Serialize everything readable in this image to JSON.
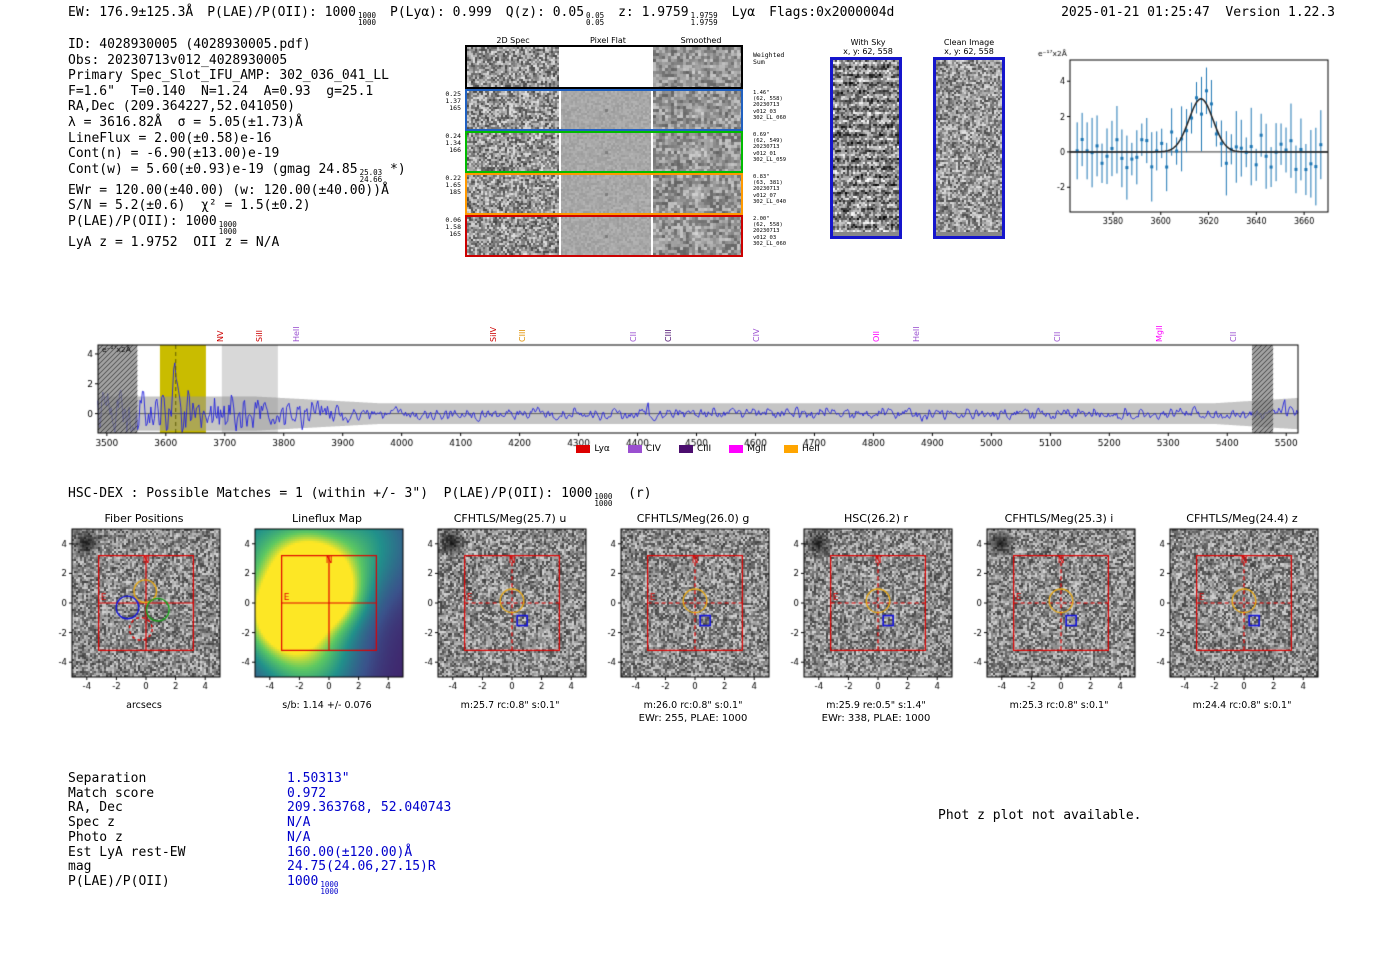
{
  "header": {
    "ew": "EW: 176.9±125.3Å",
    "plae": {
      "label": "P(LAE)/P(OII): 1000",
      "hi": "1000",
      "lo": "1000"
    },
    "plya": "P(Lyα): 0.999",
    "qz": {
      "label": "Q(z): 0.05",
      "hi": "0.05",
      "lo": "0.05"
    },
    "z": {
      "label": "z: 1.9759",
      "hi": "1.9759",
      "lo": "1.9759"
    },
    "species": "Lyα",
    "flags": "Flags:0x2000004d",
    "datetime": "2025-01-21 01:25:47  Version 1.22.3"
  },
  "info": {
    "lines": [
      "ID: 4028930005 (4028930005.pdf)",
      "Obs: 20230713v012_4028930005",
      "Primary Spec_Slot_IFU_AMP: 302_036_041_LL",
      "F=1.6\"  T=0.140  N=1.24  A=0.93  g=25.1",
      "RA,Dec (209.364227,52.041050)",
      "λ = 3616.82Å  σ = 5.05(±1.73)Å",
      "LineFlux = 2.00(±0.58)e-16",
      "Cont(n) = -6.90(±13.00)e-19"
    ],
    "contw": {
      "pre": "Cont(w) = 5.60(±0.93)e-19 (gmag 24.85",
      "hi": "25.03",
      "lo": "24.66",
      "post": " *)"
    },
    "lines2": [
      "EWr = 120.00(±40.00) (w: 120.00(±40.00))Å",
      "S/N = 5.2(±0.6)  χ² = 1.5(±0.2)"
    ],
    "plae": {
      "pre": "P(LAE)/P(OII): 1000",
      "hi": "1000",
      "lo": "1000"
    },
    "last": "LyA z = 1.9752  OII z = N/A"
  },
  "spec2d": {
    "col_headers": [
      "2D Spec",
      "Pixel Flat",
      "Smoothed"
    ],
    "weighted": [
      "Weighted",
      "Sum"
    ],
    "rows": [
      {
        "color": "#2060c0",
        "left": [
          "0.25",
          "1.37",
          "165"
        ],
        "right": [
          "1.46\"",
          "(62, 558)",
          "20230713",
          "v012_03",
          "302_LL_060"
        ]
      },
      {
        "color": "#00bb00",
        "left": [
          "0.24",
          "1.34",
          "166"
        ],
        "right": [
          "0.69\"",
          "(62, 549)",
          "20230713",
          "v012_01",
          "302_LL_059"
        ]
      },
      {
        "color": "#ff9900",
        "left": [
          "0.22",
          "1.65",
          "185"
        ],
        "right": [
          "0.83\"",
          "(63, 381)",
          "20230713",
          "v012_07",
          "302_LL_040"
        ]
      },
      {
        "color": "#cc0000",
        "left": [
          "0.06",
          "1.58",
          "165"
        ],
        "right": [
          "2.00\"",
          "(62, 558)",
          "20230713",
          "v012_03",
          "302_LL_060"
        ]
      }
    ]
  },
  "cutimgs": {
    "with_sky": {
      "title": "With Sky",
      "subtitle": "x, y: 62, 558"
    },
    "clean": {
      "title": "Clean Image",
      "subtitle": "x, y: 62, 558"
    }
  },
  "hscdex": {
    "pre": "HSC-DEX : Possible Matches = 1 (within +/- 3\")  P(LAE)/P(OII): 1000",
    "hi": "1000",
    "lo": "1000",
    "post": "  (r)"
  },
  "match": {
    "rows": [
      {
        "label": "Separation",
        "value": "1.50313\""
      },
      {
        "label": "Match score",
        "value": "0.972"
      },
      {
        "label": "RA, Dec",
        "value": "209.363768, 52.040743"
      },
      {
        "label": "Spec z",
        "value": "N/A"
      },
      {
        "label": "Photo z",
        "value": "N/A"
      },
      {
        "label": "Est LyA rest-EW",
        "value": "160.00(±120.00)Å"
      },
      {
        "label": "mag",
        "value": "24.75(24.06,27.15)R"
      },
      {
        "label": "P(LAE)/P(OII)",
        "value": "1000",
        "hi": "1000",
        "lo": "1000"
      }
    ]
  },
  "photz_note": "Phot z plot not available.",
  "chart_data": [
    {
      "id": "line_fit_zoom",
      "type": "scatter",
      "title": "Emission line fit with Gaussian",
      "ylabel": "e⁻¹⁷x2Å",
      "xlim": [
        3562,
        3670
      ],
      "ylim": [
        -3.4,
        5.2
      ],
      "xticks": [
        3580,
        3600,
        3620,
        3640,
        3660
      ],
      "yticks": [
        -2,
        0,
        2,
        4
      ],
      "gaussian_fit": {
        "center": 3616.82,
        "sigma": 5.05,
        "peak": 3.0,
        "continuum": 0.0
      },
      "marker_color": "#1f77b4",
      "n_points": 50,
      "noise_amp": 1.0,
      "err_bar": 1.5,
      "seed": 11
    },
    {
      "id": "full_spectrum",
      "type": "line",
      "title": "Full HETDEX spectrum",
      "ylabel": "e⁻¹⁷x2Å",
      "xlim": [
        3485,
        5520
      ],
      "ylim": [
        -1.3,
        4.6
      ],
      "xticks": [
        3500,
        3600,
        3700,
        3800,
        3900,
        4000,
        4100,
        4200,
        4300,
        4400,
        4500,
        4600,
        4700,
        4800,
        4900,
        5000,
        5100,
        5200,
        5300,
        5400,
        5500
      ],
      "yticks": [
        0,
        2,
        4
      ],
      "line_color": "#2222dd",
      "emission_line": 3616.82,
      "highlight_region": [
        3590,
        3668
      ],
      "highlight_color": "#c9bc00",
      "gray_regions": [
        [
          3695,
          3790
        ]
      ],
      "edge_masks": [
        [
          3485,
          3552
        ],
        [
          5442,
          5478
        ]
      ],
      "seed": 5,
      "legend": [
        {
          "label": "Lyα",
          "color": "#dd0000"
        },
        {
          "label": "CIV",
          "color": "#9a4fd0"
        },
        {
          "label": "CIII",
          "color": "#4b0d6e"
        },
        {
          "label": "MgII",
          "color": "#ff00ff"
        },
        {
          "label": "HeII",
          "color": "#ffa500"
        }
      ],
      "emission_labels": [
        {
          "name": "NV",
          "wl": 3700,
          "color": "#cc0000"
        },
        {
          "name": "SiII",
          "wl": 3766,
          "color": "#cc0000"
        },
        {
          "name": "HeII",
          "wl": 3830,
          "color": "#9a4fd0"
        },
        {
          "name": "SiIV",
          "wl": 4163,
          "color": "#cc0000"
        },
        {
          "name": "CIII",
          "wl": 4213,
          "color": "#e09000"
        },
        {
          "name": "CII",
          "wl": 4400,
          "color": "#9a4fd0"
        },
        {
          "name": "CIII",
          "wl": 4460,
          "color": "#4b0d6e"
        },
        {
          "name": "CIV",
          "wl": 4610,
          "color": "#9a4fd0"
        },
        {
          "name": "OII",
          "wl": 4813,
          "color": "#ff00ff"
        },
        {
          "name": "HeII",
          "wl": 4880,
          "color": "#9a4fd0"
        },
        {
          "name": "CII",
          "wl": 5120,
          "color": "#9a4fd0"
        },
        {
          "name": "MgII",
          "wl": 5292,
          "color": "#ff00ff"
        },
        {
          "name": "CII",
          "wl": 5419,
          "color": "#9a4fd0"
        }
      ]
    },
    {
      "id": "cutout_row",
      "type": "heatmap",
      "tick_values": [
        -4,
        -2,
        0,
        2,
        4
      ],
      "axis_range": [
        -5,
        5
      ],
      "panels": [
        {
          "title": "Fiber Positions",
          "xlabel": "arcsecs",
          "style": "fiber",
          "blob": true,
          "seed": 21
        },
        {
          "title": "Lineflux Map",
          "xlabel": "s/b: 1.14 +/- 0.076",
          "style": "lineflux",
          "blob": false,
          "seed": 22
        },
        {
          "title": "CFHTLS/Meg(25.7) u",
          "xlabel": "m:25.7 rc:0.8\" s:0.1\"",
          "style": "photo",
          "blob": true,
          "seed": 23
        },
        {
          "title": "CFHTLS/Meg(26.0) g",
          "xlabel": "m:26.0 rc:0.8\" s:0.1\"",
          "xlabel2": "EWr: 255, PLAE: 1000",
          "style": "photo",
          "blob": false,
          "seed": 24
        },
        {
          "title": "HSC(26.2) r",
          "xlabel": "m:25.9 re:0.5\" s:1.4\"",
          "xlabel2": "EWr: 338, PLAE: 1000",
          "style": "photo",
          "blob": true,
          "seed": 25
        },
        {
          "title": "CFHTLS/Meg(25.3) i",
          "xlabel": "m:25.3 rc:0.8\" s:0.1\"",
          "style": "photo",
          "blob": true,
          "seed": 26
        },
        {
          "title": "CFHTLS/Meg(24.4) z",
          "xlabel": "m:24.4 rc:0.8\" s:0.1\"",
          "style": "photo",
          "blob": false,
          "seed": 27
        }
      ]
    }
  ]
}
